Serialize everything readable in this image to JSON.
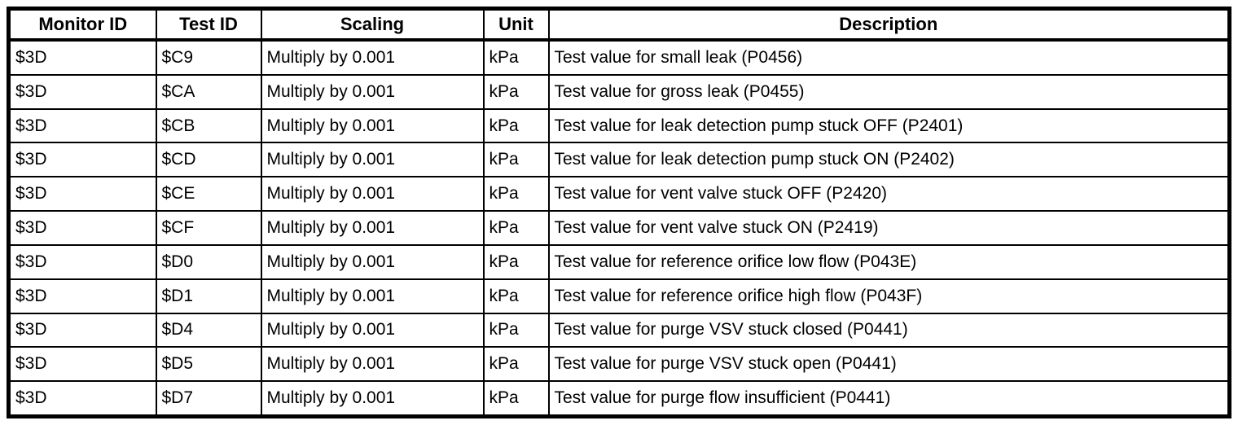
{
  "colors": {
    "border": "#000000",
    "text": "#000000",
    "background": "#ffffff"
  },
  "table": {
    "headers": [
      "Monitor ID",
      "Test ID",
      "Scaling",
      "Unit",
      "Description"
    ],
    "rows": [
      [
        "$3D",
        "$C9",
        "Multiply by 0.001",
        "kPa",
        "Test value for small leak (P0456)"
      ],
      [
        "$3D",
        "$CA",
        "Multiply by 0.001",
        "kPa",
        "Test value for gross leak (P0455)"
      ],
      [
        "$3D",
        "$CB",
        "Multiply by 0.001",
        "kPa",
        "Test value for leak detection pump stuck OFF (P2401)"
      ],
      [
        "$3D",
        "$CD",
        "Multiply by 0.001",
        "kPa",
        "Test value for leak detection pump stuck ON (P2402)"
      ],
      [
        "$3D",
        "$CE",
        "Multiply by 0.001",
        "kPa",
        "Test value for vent valve stuck OFF (P2420)"
      ],
      [
        "$3D",
        "$CF",
        "Multiply by 0.001",
        "kPa",
        "Test value for vent valve stuck ON (P2419)"
      ],
      [
        "$3D",
        "$D0",
        "Multiply by 0.001",
        "kPa",
        "Test value for reference orifice low flow (P043E)"
      ],
      [
        "$3D",
        "$D1",
        "Multiply by 0.001",
        "kPa",
        "Test value for reference orifice high flow (P043F)"
      ],
      [
        "$3D",
        "$D4",
        "Multiply by 0.001",
        "kPa",
        "Test value for purge VSV stuck closed (P0441)"
      ],
      [
        "$3D",
        "$D5",
        "Multiply by 0.001",
        "kPa",
        "Test value for purge VSV stuck open (P0441)"
      ],
      [
        "$3D",
        "$D7",
        "Multiply by 0.001",
        "kPa",
        "Test value for purge flow insufficient (P0441)"
      ]
    ]
  }
}
